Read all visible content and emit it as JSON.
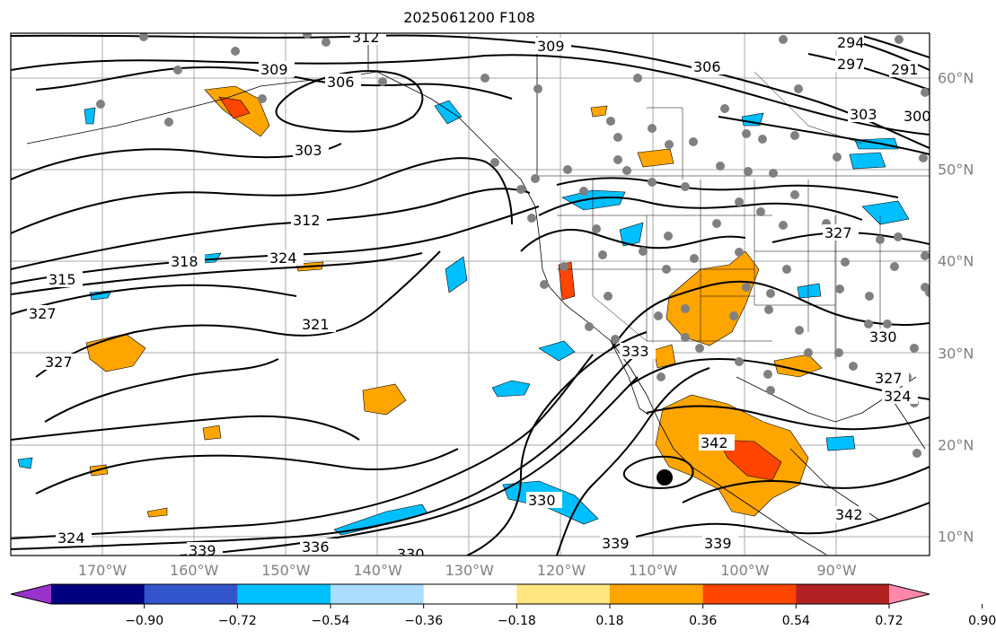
{
  "title": "2025061200 F108",
  "lon_labels": [
    {
      "text": "170°W",
      "lon": -170
    },
    {
      "text": "160°W",
      "lon": -160
    },
    {
      "text": "150°W",
      "lon": -150
    },
    {
      "text": "140°W",
      "lon": -140
    },
    {
      "text": "130°W",
      "lon": -130
    },
    {
      "text": "120°W",
      "lon": -120
    },
    {
      "text": "110°W",
      "lon": -110
    },
    {
      "text": "100°W",
      "lon": -100
    },
    {
      "text": "90°W",
      "lon": -90
    }
  ],
  "lat_labels": [
    {
      "text": "60°N",
      "lat": 60
    },
    {
      "text": "50°N",
      "lat": 50
    },
    {
      "text": "40°N",
      "lat": 40
    },
    {
      "text": "30°N",
      "lat": 30
    },
    {
      "text": "20°N",
      "lat": 20
    },
    {
      "text": "10°N",
      "lat": 10
    }
  ],
  "colorbar": {
    "colors": [
      "#9933cc",
      "#000080",
      "#3355cc",
      "#00bfff",
      "#aaddff",
      "#ffffff",
      "#ffe680",
      "#ffa500",
      "#ff4500",
      "#b22222",
      "#ff88aa"
    ],
    "ticks": [
      "−0.90",
      "−0.72",
      "−0.54",
      "−0.36",
      "−0.18",
      "0.18",
      "0.36",
      "0.54",
      "0.72",
      "0.90"
    ]
  },
  "contour_labels": [
    "312",
    "309",
    "306",
    "303",
    "306",
    "309",
    "294",
    "297",
    "291",
    "303",
    "300",
    "312",
    "324",
    "318",
    "315",
    "327",
    "321",
    "327",
    "333",
    "330",
    "327",
    "327",
    "324",
    "342",
    "342",
    "330",
    "339",
    "339",
    "336",
    "339",
    "324",
    "330"
  ]
}
